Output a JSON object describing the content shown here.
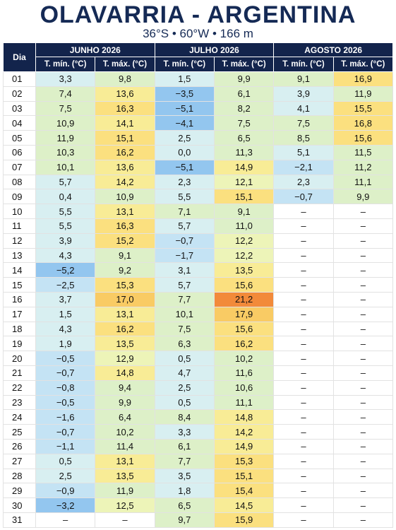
{
  "header": {
    "title": "OLAVARRIA - ARGENTINA",
    "subtitle": "36°S • 60°W • 166 m"
  },
  "table": {
    "day_header": "Dia",
    "months": [
      "JUNHO 2026",
      "JULHO 2026",
      "AGOSTO 2026"
    ],
    "columns": [
      "T. mín. (°C)",
      "T. máx. (°C)",
      "T. mín. (°C)",
      "T. máx. (°C)",
      "T. mín. (°C)",
      "T. máx. (°C)"
    ],
    "rows": [
      [
        "01",
        "3,3",
        "9,8",
        "1,5",
        "9,9",
        "9,1",
        "16,9"
      ],
      [
        "02",
        "7,4",
        "13,6",
        "−3,5",
        "6,1",
        "3,9",
        "11,9"
      ],
      [
        "03",
        "7,5",
        "16,3",
        "−5,1",
        "8,2",
        "4,1",
        "15,5"
      ],
      [
        "04",
        "10,9",
        "14,1",
        "−4,1",
        "7,5",
        "7,5",
        "16,8"
      ],
      [
        "05",
        "11,9",
        "15,1",
        "2,5",
        "6,5",
        "8,5",
        "15,6"
      ],
      [
        "06",
        "10,3",
        "16,2",
        "0,0",
        "11,3",
        "5,1",
        "11,5"
      ],
      [
        "07",
        "10,1",
        "13,6",
        "−5,1",
        "14,9",
        "−2,1",
        "11,2"
      ],
      [
        "08",
        "5,7",
        "14,2",
        "2,3",
        "12,1",
        "2,3",
        "11,1"
      ],
      [
        "09",
        "0,4",
        "10,9",
        "5,5",
        "15,1",
        "−0,7",
        "9,9"
      ],
      [
        "10",
        "5,5",
        "13,1",
        "7,1",
        "9,1",
        "–",
        "–"
      ],
      [
        "11",
        "5,5",
        "16,3",
        "5,7",
        "11,0",
        "–",
        "–"
      ],
      [
        "12",
        "3,9",
        "15,2",
        "−0,7",
        "12,2",
        "–",
        "–"
      ],
      [
        "13",
        "4,3",
        "9,1",
        "−1,7",
        "12,2",
        "–",
        "–"
      ],
      [
        "14",
        "−5,2",
        "9,2",
        "3,1",
        "13,5",
        "–",
        "–"
      ],
      [
        "15",
        "−2,5",
        "15,3",
        "5,7",
        "15,6",
        "–",
        "–"
      ],
      [
        "16",
        "3,7",
        "17,0",
        "7,7",
        "21,2",
        "–",
        "–"
      ],
      [
        "17",
        "1,5",
        "13,1",
        "10,1",
        "17,9",
        "–",
        "–"
      ],
      [
        "18",
        "4,3",
        "16,2",
        "7,5",
        "15,6",
        "–",
        "–"
      ],
      [
        "19",
        "1,9",
        "13,5",
        "6,3",
        "16,2",
        "–",
        "–"
      ],
      [
        "20",
        "−0,5",
        "12,9",
        "0,5",
        "10,2",
        "–",
        "–"
      ],
      [
        "21",
        "−0,7",
        "14,8",
        "4,7",
        "11,6",
        "–",
        "–"
      ],
      [
        "22",
        "−0,8",
        "9,4",
        "2,5",
        "10,6",
        "–",
        "–"
      ],
      [
        "23",
        "−0,5",
        "9,9",
        "0,5",
        "11,1",
        "–",
        "–"
      ],
      [
        "24",
        "−1,6",
        "6,4",
        "8,4",
        "14,8",
        "–",
        "–"
      ],
      [
        "25",
        "−0,7",
        "10,2",
        "3,3",
        "14,2",
        "–",
        "–"
      ],
      [
        "26",
        "−1,1",
        "11,4",
        "6,1",
        "14,9",
        "–",
        "–"
      ],
      [
        "27",
        "0,5",
        "13,1",
        "7,7",
        "15,3",
        "–",
        "–"
      ],
      [
        "28",
        "2,5",
        "13,5",
        "3,5",
        "15,1",
        "–",
        "–"
      ],
      [
        "29",
        "−0,9",
        "11,9",
        "1,8",
        "15,4",
        "–",
        "–"
      ],
      [
        "30",
        "−3,2",
        "12,5",
        "6,5",
        "14,5",
        "–",
        "–"
      ],
      [
        "31",
        "–",
        "–",
        "9,7",
        "15,9",
        "–",
        "–"
      ]
    ]
  }
}
